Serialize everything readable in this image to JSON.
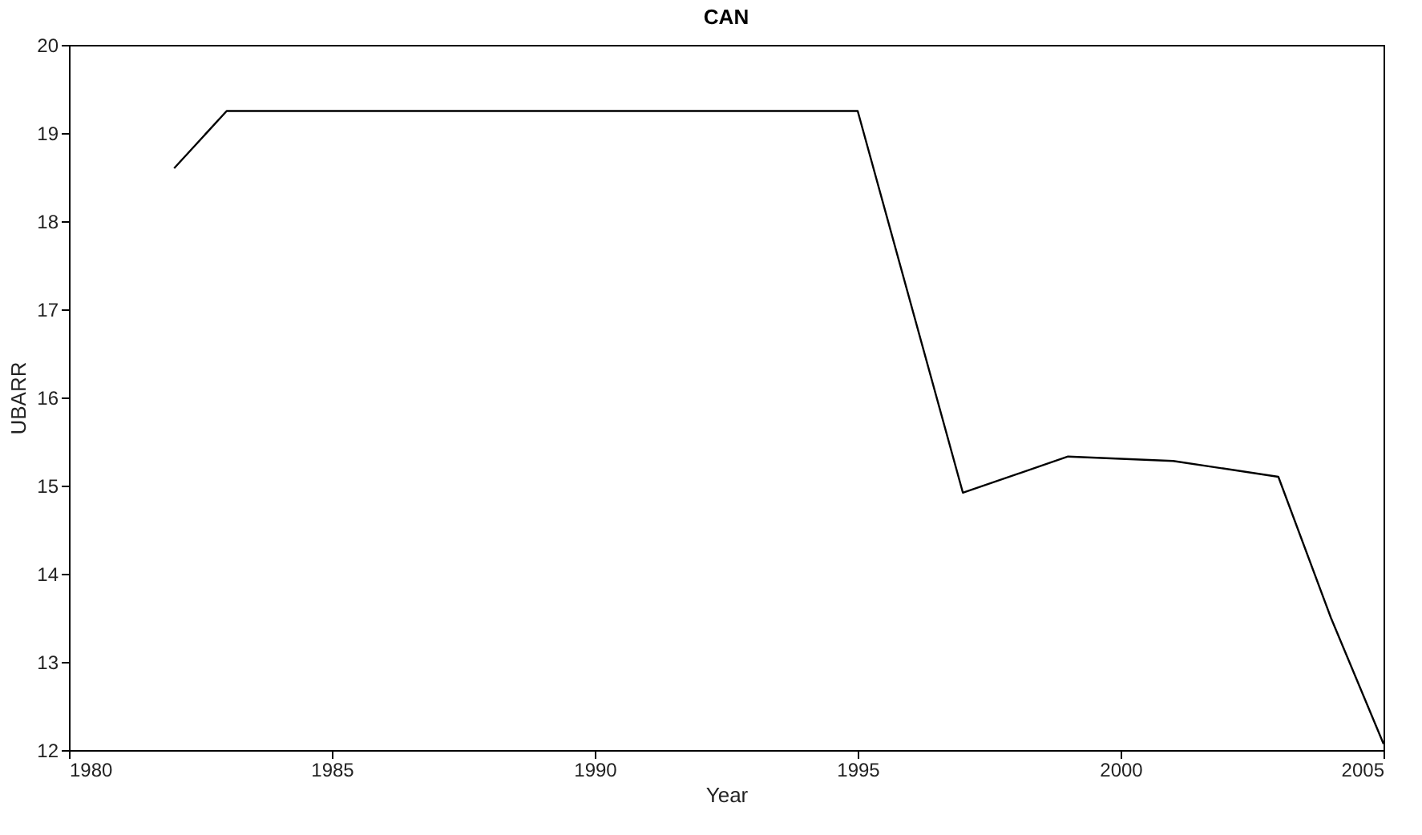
{
  "chart_data": {
    "type": "line",
    "title": "CAN",
    "xlabel": "Year",
    "ylabel": "UBARR",
    "x": [
      1982,
      1983,
      1995,
      1997,
      1999,
      2001,
      2003,
      2004,
      2005
    ],
    "series": [
      {
        "color": "#000000",
        "values": [
          18.6,
          19.25,
          19.25,
          14.92,
          15.33,
          15.28,
          15.1,
          13.5,
          12.07
        ]
      }
    ],
    "xlim": [
      1980,
      2005
    ],
    "xticks": [
      1980,
      1985,
      1990,
      1995,
      2000,
      2005
    ],
    "ylim": [
      12,
      20
    ],
    "yticks": [
      12,
      13,
      14,
      15,
      16,
      17,
      18,
      19,
      20
    ],
    "grid": false,
    "legend": false,
    "marker": "none",
    "line_style": "solid"
  }
}
